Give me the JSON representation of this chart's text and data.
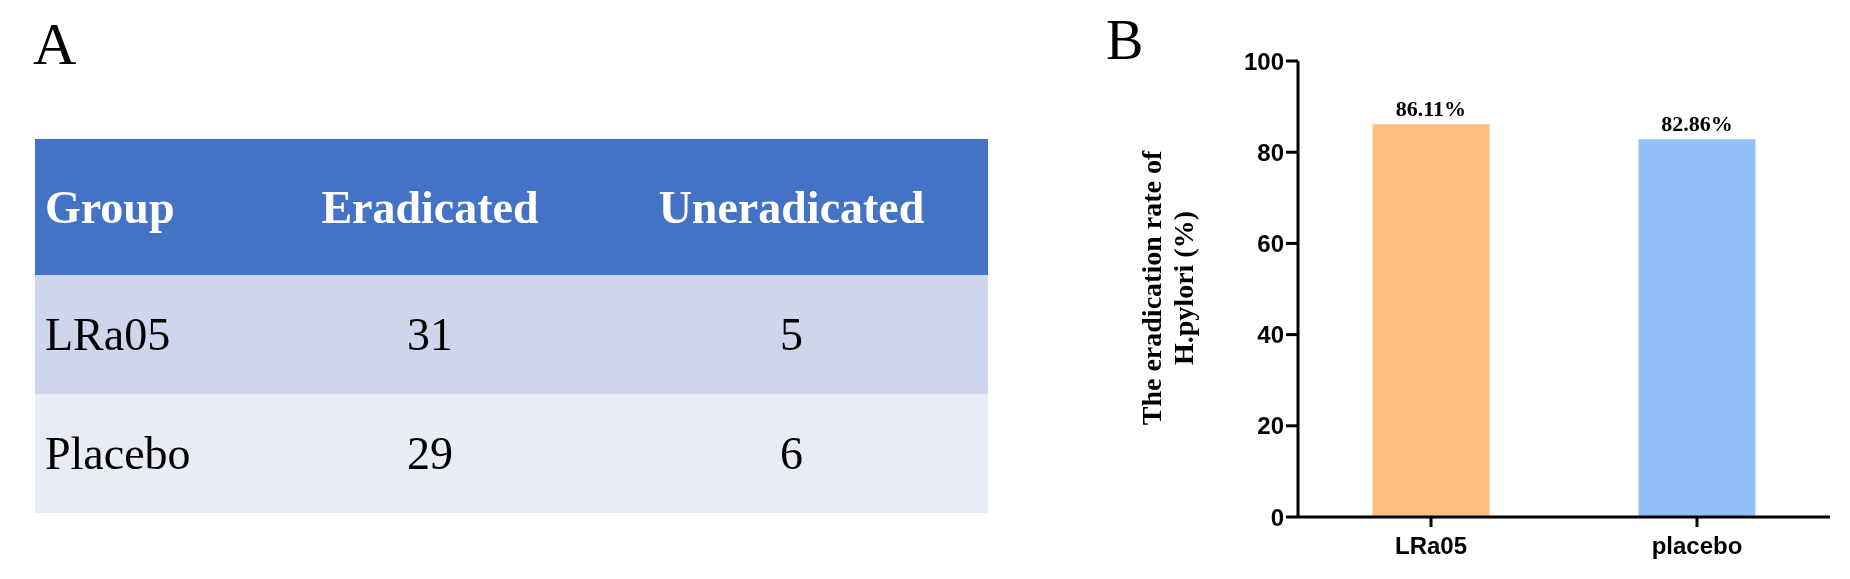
{
  "chart_data": [
    {
      "type": "heatmap",
      "title": "A",
      "ylabel": "Group",
      "categories": [
        "Eradicated",
        "Uneradicated"
      ],
      "y_categories": [
        "LRa05",
        "Placebo"
      ],
      "cells": [
        [
          31,
          5
        ],
        [
          29,
          6
        ]
      ],
      "data_labels": true,
      "colors": [
        "#4472c4",
        "#cfd5ea",
        "#e9ebf5"
      ]
    },
    {
      "type": "bar",
      "title": "B",
      "ylabel": "The eradication rate of H.pylori (%)",
      "categories": [
        "LRa05",
        "placebo"
      ],
      "values": [
        86.11,
        82.86
      ],
      "colors": [
        "#fbbf80",
        "#93c0f8"
      ],
      "value_labels": [
        "86.11%",
        "82.86%"
      ],
      "ylim": [
        0,
        100
      ],
      "yticks": [
        0,
        20,
        40,
        60,
        80,
        100
      ],
      "grid": false
    }
  ]
}
